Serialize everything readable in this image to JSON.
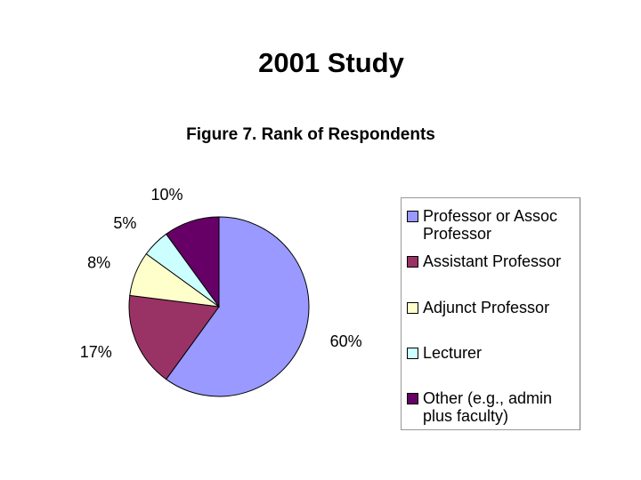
{
  "title": "2001 Study",
  "chart_data": {
    "type": "pie",
    "title": "Figure 7. Rank of Respondents",
    "categories": [
      "Professor or Assoc Professor",
      "Assistant Professor",
      "Adjunct Professor",
      "Lecturer",
      "Other (e.g., admin plus faculty)"
    ],
    "values": [
      60,
      17,
      8,
      5,
      10
    ],
    "value_labels": [
      "60%",
      "17%",
      "8%",
      "5%",
      "10%"
    ],
    "colors": [
      "#9999ff",
      "#993366",
      "#ffffcc",
      "#ccffff",
      "#660066"
    ]
  }
}
